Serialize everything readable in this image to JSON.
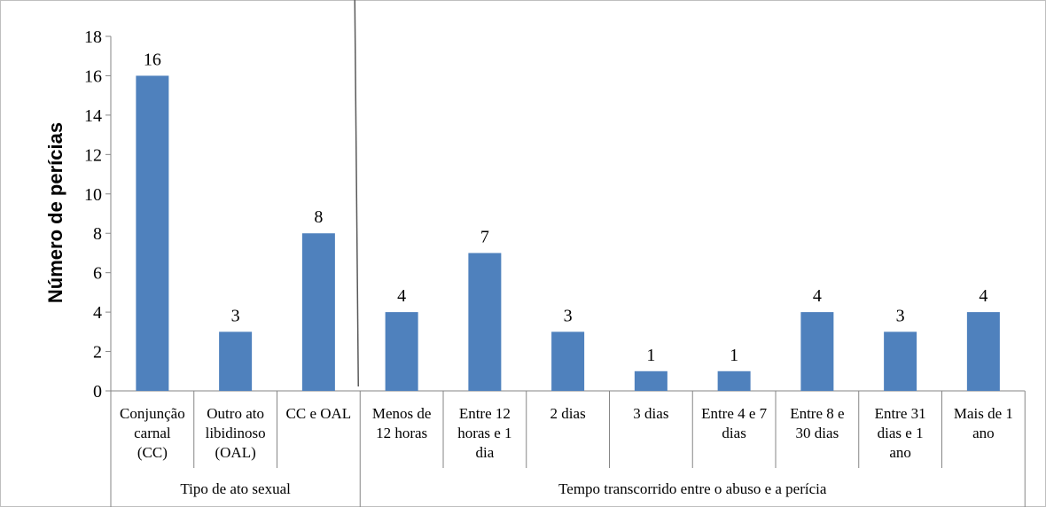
{
  "chart_data": {
    "type": "bar",
    "ylabel": "Número de perícias",
    "ylim": [
      0,
      18
    ],
    "yticks": [
      0,
      2,
      4,
      6,
      8,
      10,
      12,
      14,
      16,
      18
    ],
    "grid": false,
    "bar_color": "#4f81bd",
    "groups": [
      {
        "label": "Tipo de ato sexual",
        "categories": [
          {
            "lines": [
              "Conjunção",
              "carnal",
              "(CC)"
            ],
            "value": 16
          },
          {
            "lines": [
              "Outro ato",
              "libidinoso",
              "(OAL)"
            ],
            "value": 3
          },
          {
            "lines": [
              "CC e OAL"
            ],
            "value": 8
          }
        ]
      },
      {
        "label": "Tempo transcorrido entre o abuso e a perícia",
        "categories": [
          {
            "lines": [
              "Menos de",
              "12 horas"
            ],
            "value": 4
          },
          {
            "lines": [
              "Entre 12",
              "horas e 1",
              "dia"
            ],
            "value": 7
          },
          {
            "lines": [
              "2 dias"
            ],
            "value": 3
          },
          {
            "lines": [
              "3 dias"
            ],
            "value": 1
          },
          {
            "lines": [
              "Entre 4 e 7",
              "dias"
            ],
            "value": 1
          },
          {
            "lines": [
              "Entre 8 e",
              "30 dias"
            ],
            "value": 4
          },
          {
            "lines": [
              "Entre 31",
              "dias e 1",
              "ano"
            ],
            "value": 3
          },
          {
            "lines": [
              "Mais de 1",
              "ano"
            ],
            "value": 4
          }
        ]
      }
    ]
  }
}
